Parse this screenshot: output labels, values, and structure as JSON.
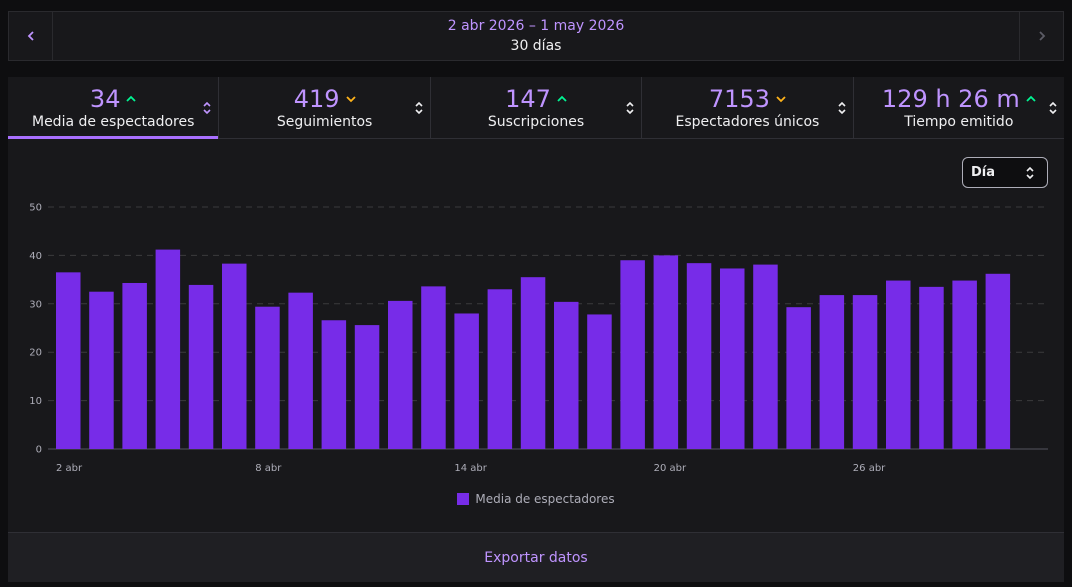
{
  "date_range": {
    "dates": "2 abr 2026 – 1 may 2026",
    "days": "30 días"
  },
  "metrics": [
    {
      "value": "34",
      "label": "Media de espectadores",
      "trend": "up",
      "active": true
    },
    {
      "value": "419",
      "label": "Seguimientos",
      "trend": "down",
      "active": false
    },
    {
      "value": "147",
      "label": "Suscripciones",
      "trend": "up",
      "active": false
    },
    {
      "value": "7153",
      "label": "Espectadores únicos",
      "trend": "down",
      "active": false
    },
    {
      "value": "129 h 26 m",
      "label": "Tiempo emitido",
      "trend": "up",
      "active": false
    }
  ],
  "granularity_select": {
    "value": "Día"
  },
  "colors": {
    "accent": "#bf94ff",
    "bar": "#772ce8",
    "trend_up": "#00f593",
    "trend_down": "#ffb31a"
  },
  "chart_data": {
    "type": "bar",
    "categories": [
      "2 abr",
      "3 abr",
      "4 abr",
      "5 abr",
      "6 abr",
      "7 abr",
      "8 abr",
      "9 abr",
      "10 abr",
      "11 abr",
      "12 abr",
      "13 abr",
      "14 abr",
      "15 abr",
      "16 abr",
      "17 abr",
      "18 abr",
      "19 abr",
      "20 abr",
      "21 abr",
      "22 abr",
      "23 abr",
      "24 abr",
      "25 abr",
      "26 abr",
      "27 abr",
      "28 abr",
      "29 abr",
      "30 abr"
    ],
    "tick_labels": [
      "2 abr",
      "8 abr",
      "14 abr",
      "20 abr",
      "26 abr"
    ],
    "series": [
      {
        "name": "Media de espectadores",
        "values": [
          36.5,
          32.5,
          34.3,
          41.2,
          33.9,
          38.3,
          29.4,
          32.3,
          26.6,
          25.6,
          30.6,
          33.6,
          28.0,
          33.0,
          35.5,
          30.4,
          27.8,
          39.0,
          40.0,
          38.4,
          37.3,
          38.1,
          29.3,
          31.8,
          31.8,
          34.8,
          33.5,
          34.8,
          36.2
        ]
      }
    ],
    "y_ticks": [
      "0",
      "10",
      "20",
      "30",
      "40",
      "50"
    ],
    "ylim": [
      0,
      50
    ],
    "grid": true,
    "legend_position": "bottom-center"
  },
  "export_label": "Exportar datos"
}
